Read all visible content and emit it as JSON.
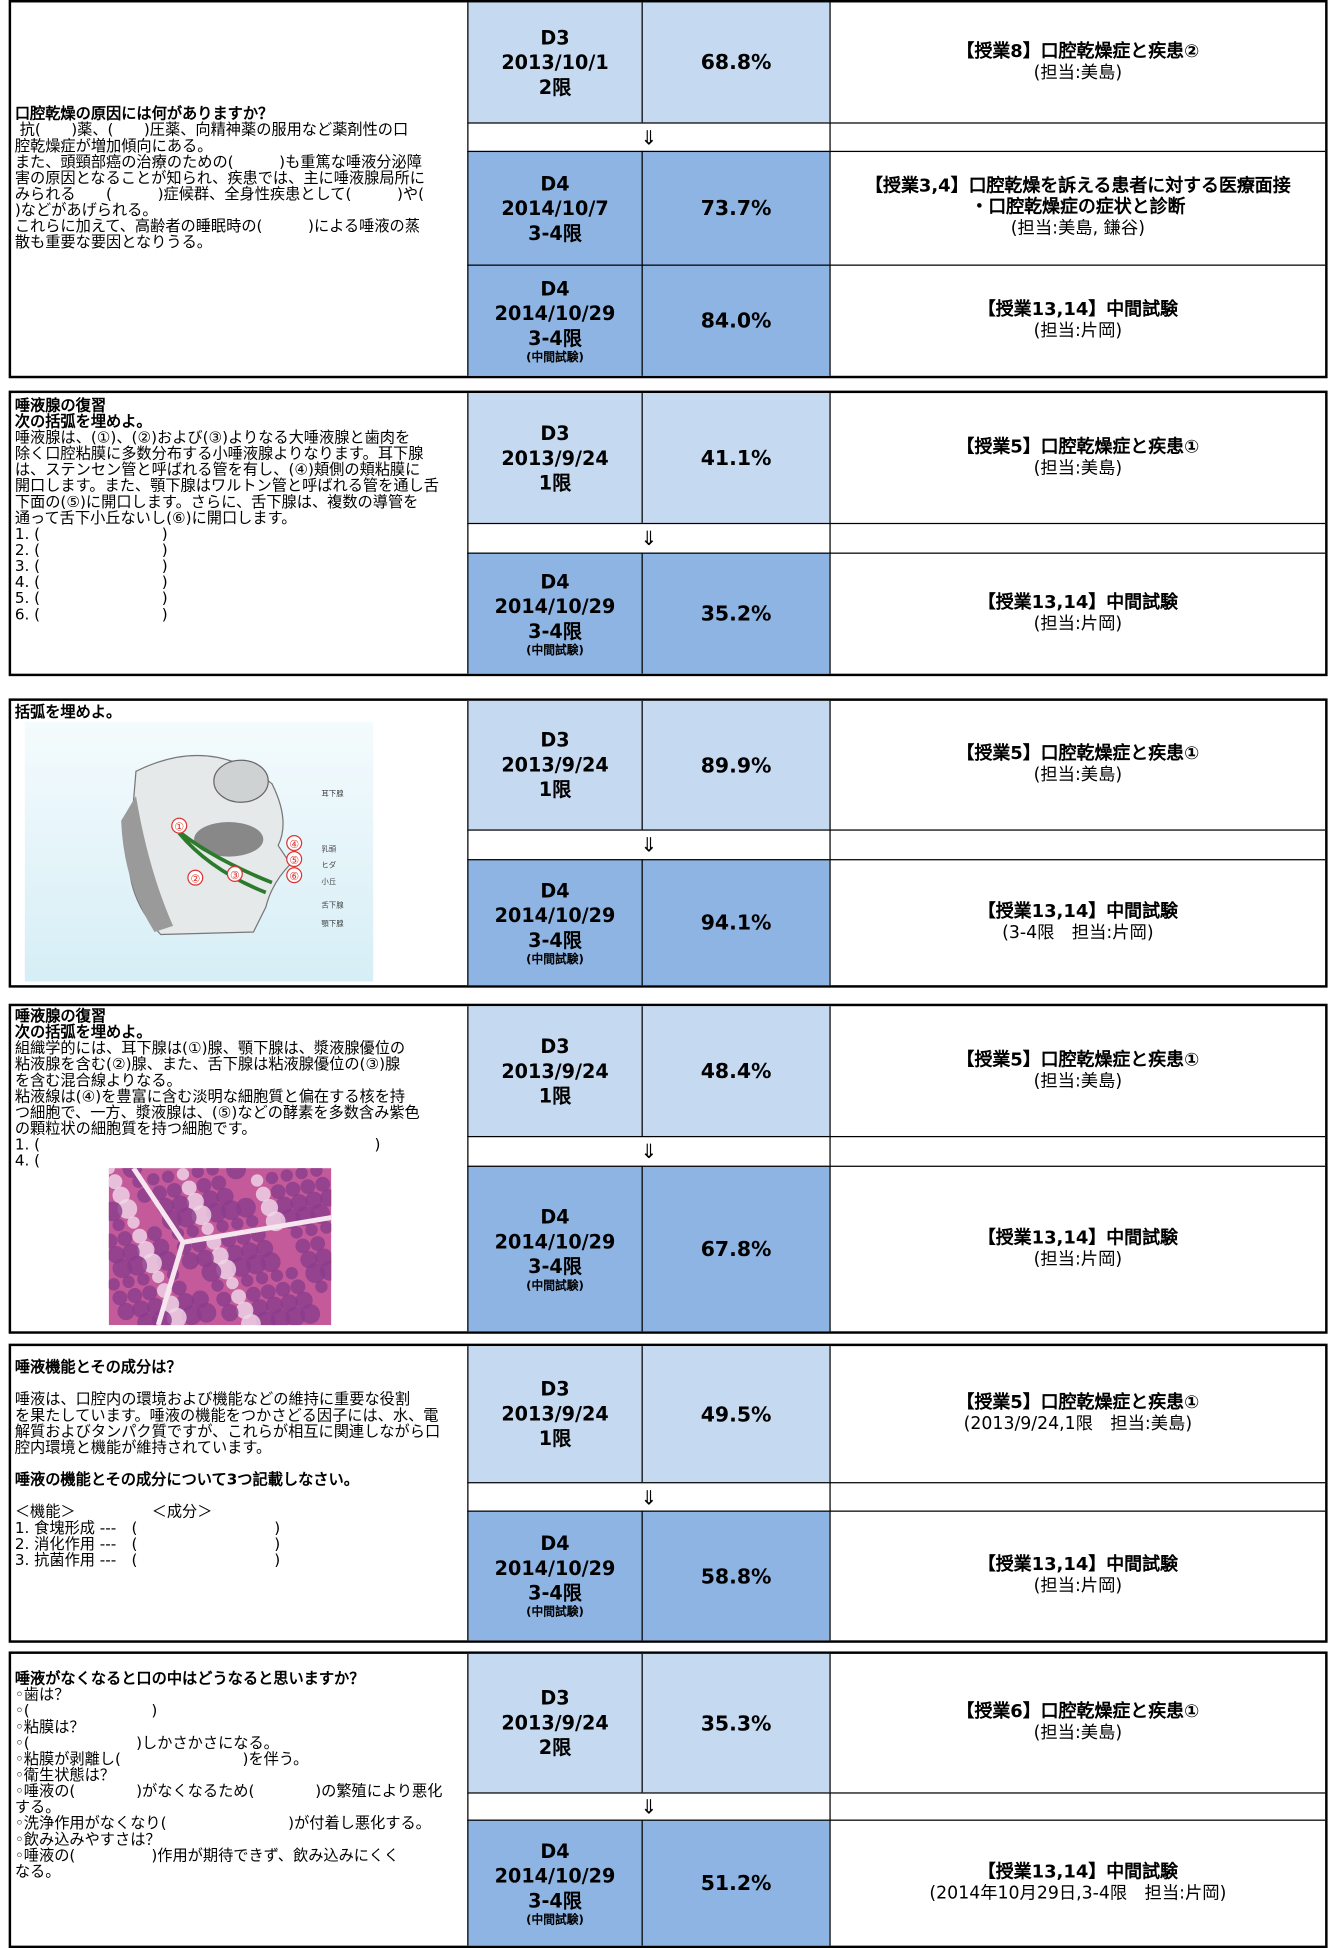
{
  "blocks": [
    {
      "question": [
        {
          "bold": true,
          "lines": [
            "口腔乾燥の原因には何がありますか？"
          ]
        },
        {
          "bold": false,
          "lines": [
            " 抗(　　)薬、(　　)圧薬、向精神薬の服用など薬剤性の口",
            "腔乾燥症が増加傾向にある。",
            "また、頭頸部癌の治療のための(　　　)も重篤な唾液分泌障",
            "害の原因となることが知られ、疾患では、主に唾液腺局所に",
            "みられる　　(　　　)症候群、全身性疾患として(　　　)や(",
            ")などがあげられる。",
            "これらに加えて、高齢者の睡眠時の(　　　)による唾液の蒸",
            "散も重要な要因となりうる。"
          ]
        }
      ],
      "arrow": "⇓",
      "rows": [
        {
          "grade": "D3",
          "date": "2013/10/1",
          "period": "2限",
          "rate": "68.8%",
          "lecture": [
            "【授業8】口腔乾燥症と疾患②"
          ],
          "staff": "(担当:美島)"
        },
        {
          "grade": "D4",
          "date": "2014/10/7",
          "period": "3-4限",
          "rate": "73.7%",
          "lecture": [
            "【授業3,4】口腔乾燥を訴える患者に対する医療面接",
            "・口腔乾燥症の症状と診断"
          ],
          "staff": "(担当:美島, 鎌谷)"
        },
        {
          "grade": "D4",
          "date": "2014/10/29",
          "period": "3-4限",
          "note": "(中間試験)",
          "rate": "84.0%",
          "lecture": [
            "【授業13,14】中間試験"
          ],
          "staff": "(担当:片岡)"
        }
      ]
    },
    {
      "question": [
        {
          "bold": true,
          "lines": [
            "唾液腺の復習",
            "次の括弧を埋めよ。"
          ]
        },
        {
          "bold": false,
          "lines": [
            "唾液腺は、(①)、(②)および(③)よりなる大唾液腺と歯肉を",
            "除く口腔粘膜に多数分布する小唾液腺よりなります。耳下腺",
            "は、ステンセン管と呼ばれる管を有し、(④)頬側の頬粘膜に",
            "開口します。また、顎下腺はワルトン管と呼ばれる管を通し舌",
            "下面の(⑤)に開口します。さらに、舌下腺は、複数の導管を",
            "通って舌下小丘ないし(⑥)に開口します。",
            "1. (　　　　　　　　)",
            "2. (　　　　　　　　)",
            "3. (　　　　　　　　)",
            "4. (　　　　　　　　)",
            "5. (　　　　　　　　)",
            "6. (　　　　　　　　)"
          ]
        }
      ],
      "arrow": "⇓",
      "rows": [
        {
          "grade": "D3",
          "date": "2013/9/24",
          "period": "1限",
          "rate": "41.1%",
          "lecture": [
            "【授業5】口腔乾燥症と疾患①"
          ],
          "staff": "(担当:美島)"
        },
        {
          "grade": "D4",
          "date": "2014/10/29",
          "period": "3-4限",
          "note": "(中間試験)",
          "rate": "35.2%",
          "lecture": [
            "【授業13,14】中間試験"
          ],
          "staff": "(担当:片岡)"
        }
      ]
    },
    {
      "question": [
        {
          "bold": true,
          "lines": [
            "括弧を埋めよ。"
          ]
        }
      ],
      "figure": {
        "labels": [
          "①",
          "②",
          "③",
          "④",
          "⑤",
          "⑥"
        ],
        "terms": [
          "耳下腺",
          "乳頭",
          "ヒダ",
          "小丘",
          "舌下腺",
          "顎下腺"
        ]
      },
      "arrow": "⇓",
      "rows": [
        {
          "grade": "D3",
          "date": "2013/9/24",
          "period": "1限",
          "rate": "89.9%",
          "lecture": [
            "【授業5】口腔乾燥症と疾患①"
          ],
          "staff": "(担当:美島)"
        },
        {
          "grade": "D4",
          "date": "2014/10/29",
          "period": "3-4限",
          "note": "(中間試験)",
          "rate": "94.1%",
          "lecture": [
            "【授業13,14】中間試験"
          ],
          "staff": "(3-4限　担当:片岡)"
        }
      ]
    },
    {
      "question": [
        {
          "bold": true,
          "lines": [
            "唾液腺の復習",
            "次の括弧を埋めよ。"
          ]
        },
        {
          "bold": false,
          "lines": [
            "組織学的には、耳下腺は(①)腺、顎下腺は、漿液腺優位の",
            "粘液腺を含む(②)腺、また、舌下腺は粘液腺優位の(③)腺",
            "を含む混合線よりなる。",
            "粘液線は(④)を豊富に含む淡明な細胞質と偏在する核を持",
            "つ細胞で、一方、漿液腺は、(⑤)などの酵素を多数含み紫色",
            "の顆粒状の細胞質を持つ細胞です。",
            "1. (　　　　　　　　　　　　　　　　　　　　　　)",
            "4. ("
          ]
        }
      ],
      "histology": true,
      "arrow": "⇓",
      "rows": [
        {
          "grade": "D3",
          "date": "2013/9/24",
          "period": "1限",
          "rate": "48.4%",
          "lecture": [
            "【授業5】口腔乾燥症と疾患①"
          ],
          "staff": "(担当:美島)"
        },
        {
          "grade": "D4",
          "date": "2014/10/29",
          "period": "3-4限",
          "note": "(中間試験)",
          "rate": "67.8%",
          "lecture": [
            "【授業13,14】中間試験"
          ],
          "staff": "(担当:片岡)"
        }
      ]
    },
    {
      "question": [
        {
          "bold": true,
          "lines": [
            "唾液機能とその成分は？"
          ]
        },
        {
          "bold": false,
          "lines": [
            "唾液は、口腔内の環境および機能などの維持に重要な役割",
            "を果たしています。唾液の機能をつかさどる因子には、水、電",
            "解質およびタンパク質ですが、これらが相互に関連しながら口",
            "腔内環境と機能が維持されています。"
          ]
        },
        {
          "bold": true,
          "lines": [
            "唾液の機能とその成分について3つ記載しなさい。"
          ]
        },
        {
          "bold": false,
          "lines": [
            "＜機能＞　　　　　＜成分＞",
            "1. 食塊形成 ---　(　　　　　　　　　)",
            "2. 消化作用 ---　(　　　　　　　　　)",
            "3. 抗菌作用 ---　(　　　　　　　　　)"
          ]
        }
      ],
      "arrow": "⇓",
      "rows": [
        {
          "grade": "D3",
          "date": "2013/9/24",
          "period": "1限",
          "rate": "49.5%",
          "lecture": [
            "【授業5】口腔乾燥症と疾患①"
          ],
          "staff": "(2013/9/24,1限　担当:美島)"
        },
        {
          "grade": "D4",
          "date": "2014/10/29",
          "period": "3-4限",
          "note": "(中間試験)",
          "rate": "58.8%",
          "lecture": [
            "【授業13,14】中間試験"
          ],
          "staff": "(担当:片岡)"
        }
      ]
    },
    {
      "question": [
        {
          "bold": true,
          "lines": [
            "唾液がなくなると口の中はどうなると思いますか？"
          ]
        },
        {
          "bold": false,
          "lines": [
            "◦歯は？",
            "◦(　　　　　　　　)",
            "◦粘膜は？",
            "◦(　　　　　　　)しかさかさになる。",
            "◦粘膜が剥離し(　　　　　　　　)を伴う。",
            "◦衛生状態は？",
            "◦唾液の(　　　　)がなくなるため(　　　　)の繁殖により悪化",
            "する。",
            "◦洗浄作用がなくなり(　　　　　　　　)が付着し悪化する。",
            "◦飲み込みやすさは？",
            "◦唾液の(　　　　　)作用が期待できず、飲み込みにくく",
            "なる。"
          ]
        }
      ],
      "arrow": "⇓",
      "rows": [
        {
          "grade": "D3",
          "date": "2013/9/24",
          "period": "2限",
          "rate": "35.3%",
          "lecture": [
            "【授業6】口腔乾燥症と疾患①"
          ],
          "staff": "(担当:美島)"
        },
        {
          "grade": "D4",
          "date": "2014/10/29",
          "period": "3-4限",
          "note": "(中間試験)",
          "rate": "51.2%",
          "lecture": [
            "【授業13,14】中間試験"
          ],
          "staff": "(2014年10月29日,3-4限　担当:片岡)"
        }
      ]
    }
  ]
}
